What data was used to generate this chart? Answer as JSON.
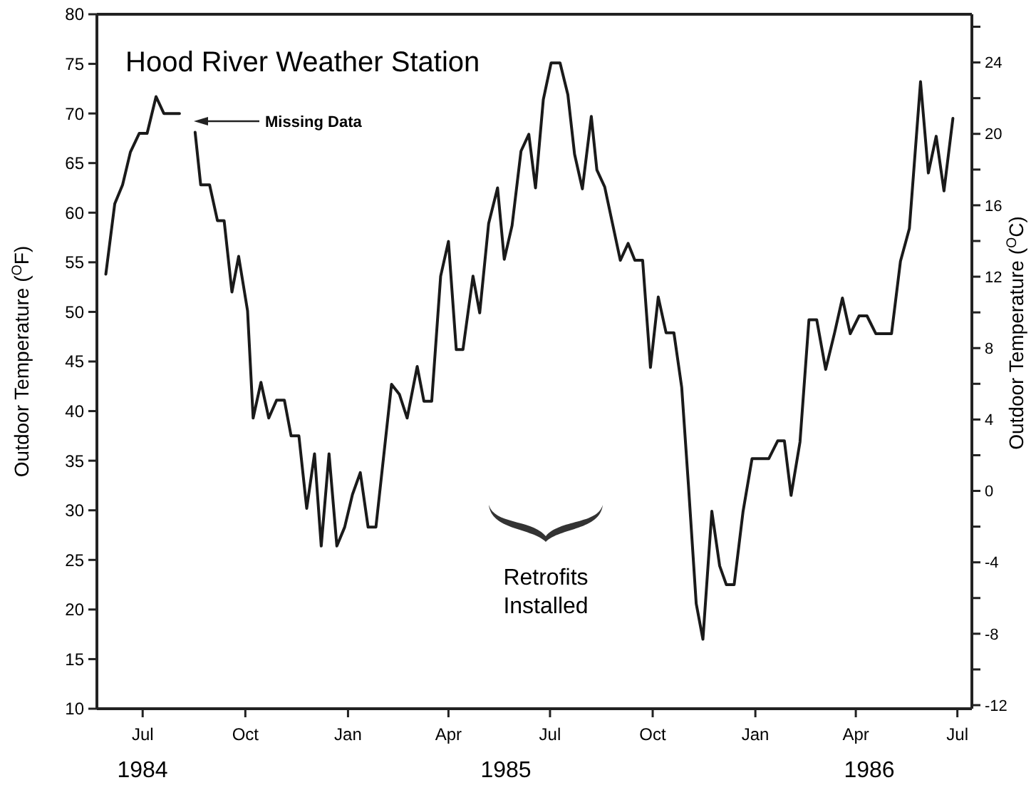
{
  "chart_data": {
    "type": "line",
    "title": "Hood River Weather Station",
    "ylabel": "Outdoor Temperature ($^{O}$F)",
    "y2label": "Outdoor Temperature ($^{O}$C)",
    "x": [
      "1984-05-29",
      "1984-06-06",
      "1984-06-13",
      "1984-06-20",
      "1984-06-28",
      "1984-07-05",
      "1984-07-13",
      "1984-07-20",
      "1984-08-03",
      "1984-08-10",
      "1984-08-17",
      "1984-08-22",
      "1984-08-30",
      "1984-09-06",
      "1984-09-12",
      "1984-09-19",
      "1984-09-25",
      "1984-10-03",
      "1984-10-08",
      "1984-10-15",
      "1984-10-22",
      "1984-10-29",
      "1984-11-05",
      "1984-11-11",
      "1984-11-18",
      "1984-11-25",
      "1984-12-02",
      "1984-12-08",
      "1984-12-15",
      "1984-12-22",
      "1984-12-29",
      "1985-01-05",
      "1985-01-12",
      "1985-01-19",
      "1985-01-26",
      "1985-02-09",
      "1985-02-16",
      "1985-02-23",
      "1985-03-04",
      "1985-03-10",
      "1985-03-17",
      "1985-03-25",
      "1985-04-01",
      "1985-04-08",
      "1985-04-14",
      "1985-04-23",
      "1985-04-29",
      "1985-05-07",
      "1985-05-15",
      "1985-05-21",
      "1985-05-28",
      "1985-06-05",
      "1985-06-12",
      "1985-06-18",
      "1985-06-25",
      "1985-07-02",
      "1985-07-10",
      "1985-07-17",
      "1985-07-23",
      "1985-07-30",
      "1985-08-07",
      "1985-08-12",
      "1985-08-19",
      "1985-08-26",
      "1985-09-02",
      "1985-09-09",
      "1985-09-15",
      "1985-09-22",
      "1985-09-29",
      "1985-10-06",
      "1985-10-13",
      "1985-10-20",
      "1985-10-27",
      "1985-11-02",
      "1985-11-09",
      "1985-11-15",
      "1985-11-23",
      "1985-11-30",
      "1985-12-06",
      "1985-12-13",
      "1985-12-21",
      "1985-12-29",
      "1986-01-13",
      "1986-01-21",
      "1986-01-27",
      "1986-02-02",
      "1986-02-10",
      "1986-02-18",
      "1986-02-25",
      "1986-03-05",
      "1986-03-13",
      "1986-03-20",
      "1986-03-27",
      "1986-04-04",
      "1986-04-11",
      "1986-04-19",
      "1986-05-03",
      "1986-05-11",
      "1986-05-19",
      "1986-05-29",
      "1986-06-05",
      "1986-06-12",
      "1986-06-19",
      "1986-06-27"
    ],
    "series": [
      {
        "color": "#1a1a1a",
        "values": [
          53.8,
          60.9,
          62.8,
          66.1,
          68.0,
          68.0,
          71.7,
          70.0,
          70.0,
          null,
          68.1,
          62.8,
          62.8,
          59.2,
          59.2,
          52.0,
          55.6,
          50.1,
          39.3,
          42.9,
          39.3,
          41.1,
          41.1,
          37.5,
          37.5,
          30.2,
          35.7,
          26.4,
          35.7,
          26.4,
          28.3,
          31.6,
          33.8,
          28.3,
          28.3,
          42.7,
          41.7,
          39.3,
          44.5,
          41.0,
          41.0,
          53.6,
          57.1,
          46.2,
          46.2,
          53.6,
          49.9,
          58.9,
          62.5,
          55.3,
          58.7,
          66.2,
          67.9,
          62.5,
          71.4,
          75.1,
          75.1,
          71.9,
          65.9,
          62.4,
          69.7,
          64.3,
          62.6,
          58.9,
          55.2,
          56.9,
          55.2,
          55.2,
          44.4,
          51.5,
          47.9,
          47.9,
          42.4,
          32.6,
          20.6,
          17.0,
          29.9,
          24.4,
          22.5,
          22.5,
          29.9,
          35.2,
          35.2,
          37.0,
          37.0,
          31.5,
          36.9,
          49.2,
          49.2,
          44.2,
          47.9,
          51.4,
          47.8,
          49.6,
          49.6,
          47.8,
          47.8,
          55.1,
          58.4,
          73.2,
          64.0,
          67.7,
          62.2,
          69.5
        ]
      }
    ],
    "xlim": [
      "1984-05-21",
      "1986-07-14"
    ],
    "xticks": [
      {
        "value": "1984-07-01",
        "label": "Jul"
      },
      {
        "value": "1984-10-01",
        "label": "Oct"
      },
      {
        "value": "1985-01-01",
        "label": "Jan"
      },
      {
        "value": "1985-04-01",
        "label": "Apr"
      },
      {
        "value": "1985-07-01",
        "label": "Jul"
      },
      {
        "value": "1985-10-01",
        "label": "Oct"
      },
      {
        "value": "1986-01-01",
        "label": "Jan"
      },
      {
        "value": "1986-04-01",
        "label": "Apr"
      },
      {
        "value": "1986-07-01",
        "label": "Jul"
      }
    ],
    "ylim": [
      10,
      80
    ],
    "yticks": [
      10,
      15,
      20,
      25,
      30,
      35,
      40,
      45,
      50,
      55,
      60,
      65,
      70,
      75,
      80
    ],
    "y2lim": [
      -12.2,
      26.7
    ],
    "y2ticks": [
      -12,
      {
        "value": -10,
        "label": null
      },
      -8,
      {
        "value": -6,
        "label": null
      },
      -4,
      {
        "value": -2,
        "label": null
      },
      0,
      {
        "value": 2,
        "label": null
      },
      4,
      {
        "value": 6,
        "label": null
      },
      8,
      {
        "value": 10,
        "label": null
      },
      12,
      {
        "value": 14,
        "label": null
      },
      16,
      {
        "value": 18,
        "label": null
      },
      20,
      {
        "value": 22,
        "label": null
      },
      24,
      {
        "value": 26,
        "label": null
      }
    ],
    "annotations": [
      "Missing Data",
      "Retrofits Installed",
      "1984",
      "1985",
      "1986"
    ]
  }
}
